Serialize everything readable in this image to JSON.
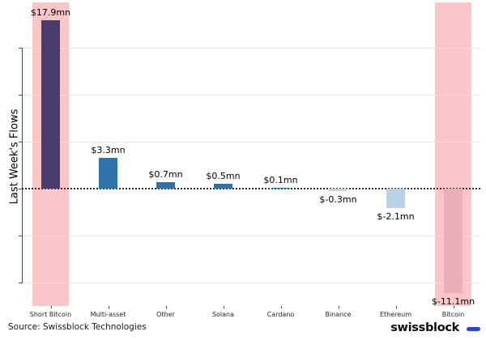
{
  "chart_data": {
    "type": "bar",
    "title": "",
    "xlabel": "",
    "ylabel": "Last Week's Flows",
    "unit": "mn USD",
    "categories": [
      "Short Bitcoin",
      "Multi-asset",
      "Other",
      "Solana",
      "Cardano",
      "Binance",
      "Ethereum",
      "Bitcoin"
    ],
    "values": [
      17.9,
      3.3,
      0.7,
      0.5,
      0.1,
      -0.3,
      -2.1,
      -11.1
    ],
    "value_labels": [
      "$17.9mn",
      "$3.3mn",
      "$0.7mn",
      "$0.5mn",
      "$0.1mn",
      "$-0.3mn",
      "$-2.1mn",
      "$-11.1mn"
    ],
    "highlighted_categories": [
      "Short Bitcoin",
      "Bitcoin"
    ],
    "ylim": [
      -12.5,
      19.8
    ],
    "ytick_interval": 5,
    "ytick_labels_visible": false,
    "grid": true,
    "zero_line_style": "dotted",
    "legend_position": "none",
    "colors": {
      "short_bitcoin_bar": "#473c6b",
      "positive_bar": "#2e74ab",
      "negative_bar": "#b9d2e8",
      "bitcoin_bar": "#edaebc",
      "highlight_band": "#fbc6c8"
    }
  },
  "footer": {
    "source": "Source: Swissblock Technologies",
    "brand_wordmark": "swissblock",
    "brand_dash_color": "#2946d2"
  }
}
